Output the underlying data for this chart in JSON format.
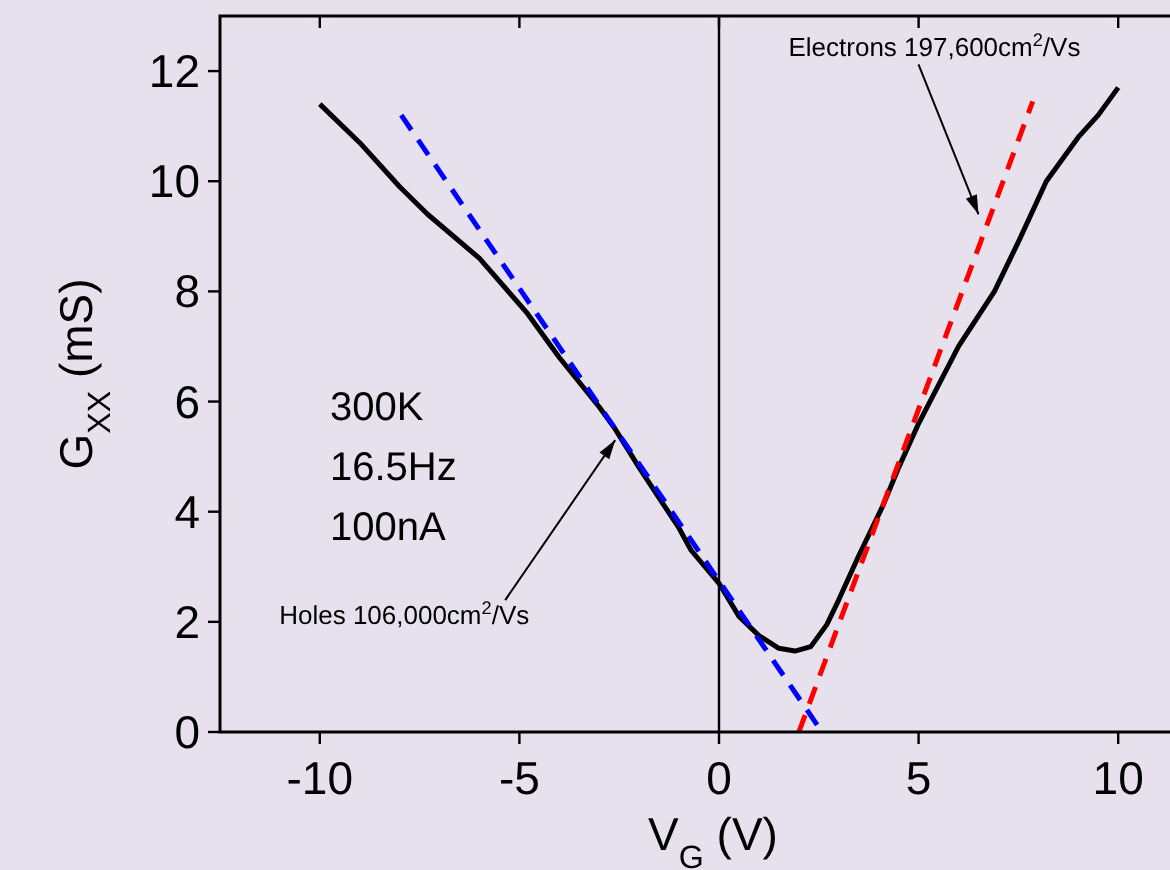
{
  "chart_data": {
    "type": "line",
    "xlabel": "V$_{G}$ (V)",
    "ylabel": "G$_{XX}$ (mS)",
    "xlim": [
      -12.5,
      12.5
    ],
    "ylim": [
      0,
      13
    ],
    "xticks": [
      -10,
      -5,
      0,
      5,
      10
    ],
    "yticks": [
      0,
      2,
      4,
      6,
      8,
      10,
      12
    ],
    "grid": false,
    "series": [
      {
        "color": "#000000",
        "line_style": "solid",
        "x": [
          -10,
          -9,
          -8,
          -7.3,
          -6,
          -4.8,
          -4,
          -3,
          -2.6,
          -2,
          -1,
          -0.7,
          0,
          0.5,
          1,
          1.5,
          1.9,
          2.3,
          2.7,
          3,
          3.5,
          4.1,
          4.5,
          5,
          6,
          6.9,
          7.5,
          8.2,
          9,
          9.5,
          10
        ],
        "values": [
          11.4,
          10.7,
          9.9,
          9.4,
          8.6,
          7.6,
          6.8,
          5.9,
          5.5,
          4.8,
          3.7,
          3.3,
          2.7,
          2.1,
          1.75,
          1.52,
          1.47,
          1.55,
          1.95,
          2.4,
          3.2,
          4.1,
          4.8,
          5.6,
          7,
          8,
          8.9,
          10,
          10.8,
          11.2,
          11.7
        ]
      },
      {
        "color": "#0000ff",
        "line_style": "dashed",
        "x": [
          -7.96,
          2.58
        ],
        "values": [
          11.2,
          0
        ]
      },
      {
        "color": "#ff0000",
        "line_style": "dashed",
        "x": [
          2.0,
          7.86
        ],
        "values": [
          0,
          11.45
        ]
      }
    ],
    "ref_lines": [
      {
        "axis": "x",
        "value": 0,
        "color": "#000000"
      }
    ],
    "annotations": [
      "300K",
      "16.5Hz",
      "100nA",
      {
        "text": "Holes 106,000cm$^{2}$/Vs",
        "x": -2.6,
        "y": 5.3
      },
      {
        "text": "Electrons 197,600cm$^{2}$/Vs",
        "x": 6.5,
        "y": 9.4
      }
    ]
  }
}
